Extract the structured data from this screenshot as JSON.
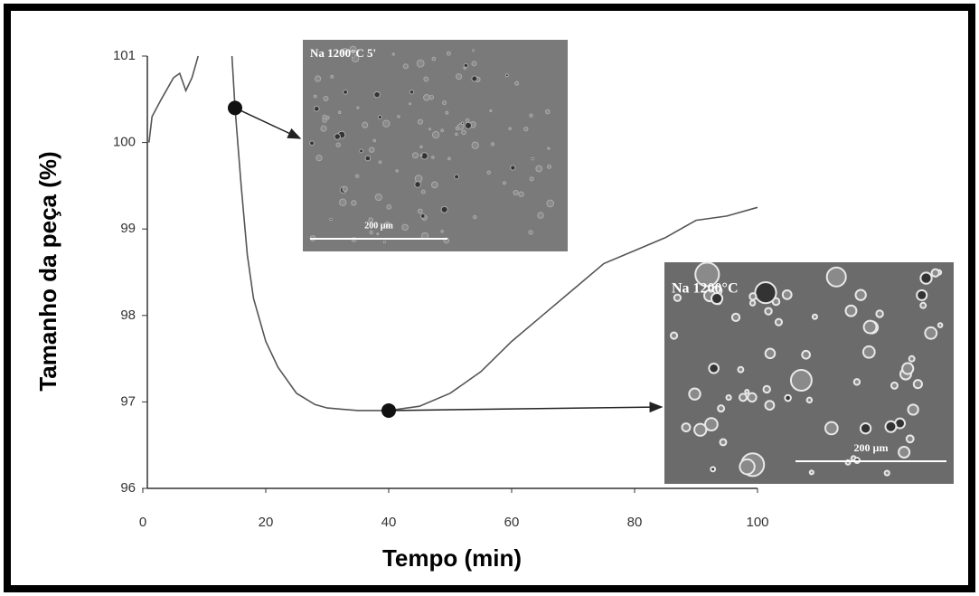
{
  "chart_data": {
    "type": "line",
    "x_label": "Tempo  (min)",
    "y_label": "Tamanho da peça (%)",
    "x": [
      1,
      1.5,
      3,
      5,
      6,
      7,
      8,
      9,
      11,
      14.5,
      15,
      16,
      17,
      18,
      20,
      22,
      25,
      28,
      30,
      35,
      40,
      45,
      50,
      55,
      60,
      65,
      70,
      75,
      80,
      85,
      90,
      95,
      100
    ],
    "series": [
      {
        "color": "#555555",
        "values": [
          100.0,
          100.3,
          100.5,
          100.75,
          100.8,
          100.6,
          100.75,
          101.0,
          null,
          101.0,
          100.4,
          99.5,
          98.7,
          98.2,
          97.7,
          97.4,
          97.1,
          96.97,
          96.93,
          96.9,
          96.9,
          96.95,
          97.1,
          97.35,
          97.7,
          98.0,
          98.3,
          98.6,
          98.75,
          98.9,
          99.1,
          99.15,
          99.25
        ]
      }
    ],
    "markers": [
      {
        "x": 15,
        "y": 100.4
      },
      {
        "x": 40,
        "y": 96.9
      }
    ],
    "xlim": [
      0,
      100
    ],
    "ylim": [
      96,
      101
    ],
    "xticks": [
      0,
      20,
      40,
      60,
      80,
      100
    ],
    "yticks": [
      96,
      97,
      98,
      99,
      100,
      101
    ],
    "insets": [
      {
        "label": "Na 1200°C 5'",
        "scale_label": "200 µm"
      },
      {
        "label": "Na   1200°C",
        "scale_label": "200 µm"
      }
    ]
  }
}
